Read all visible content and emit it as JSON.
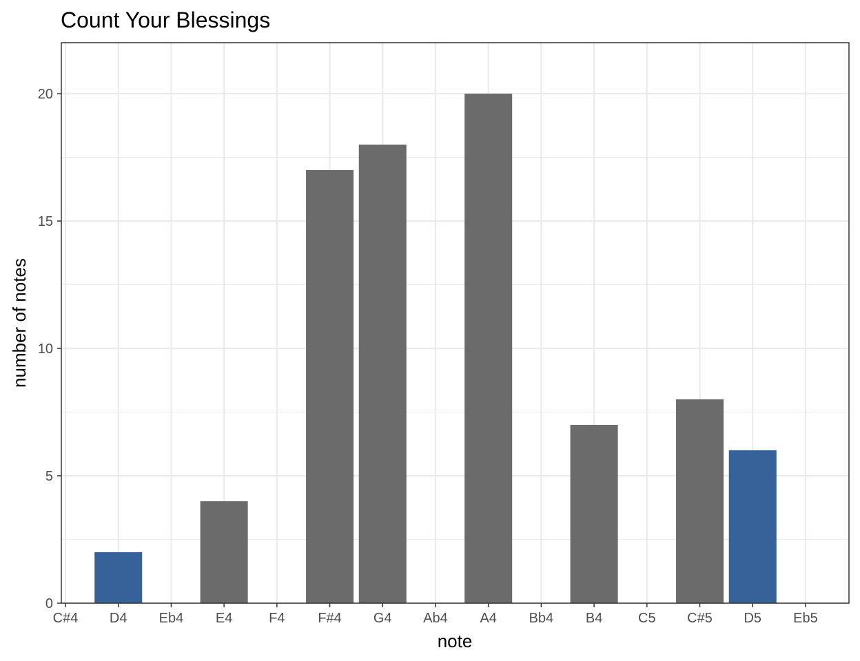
{
  "chart_data": {
    "type": "bar",
    "title": "Count Your Blessings",
    "xlabel": "note",
    "ylabel": "number of notes",
    "categories": [
      "C#4",
      "D4",
      "Eb4",
      "E4",
      "F4",
      "F#4",
      "G4",
      "Ab4",
      "A4",
      "Bb4",
      "B4",
      "C5",
      "C#5",
      "D5",
      "Eb5"
    ],
    "values": [
      0,
      2,
      0,
      4,
      0,
      17,
      18,
      0,
      20,
      0,
      7,
      0,
      8,
      6,
      0
    ],
    "highlight": [
      false,
      true,
      false,
      false,
      false,
      false,
      false,
      false,
      false,
      false,
      false,
      false,
      false,
      true,
      false
    ],
    "ylim": [
      0,
      22
    ],
    "yticks": [
      0,
      5,
      10,
      15,
      20
    ],
    "grid": true,
    "legend": "none",
    "colors": {
      "bar": "#6b6b6b",
      "highlight": "#376299",
      "grid": "#ebebeb",
      "border": "#333333"
    }
  }
}
